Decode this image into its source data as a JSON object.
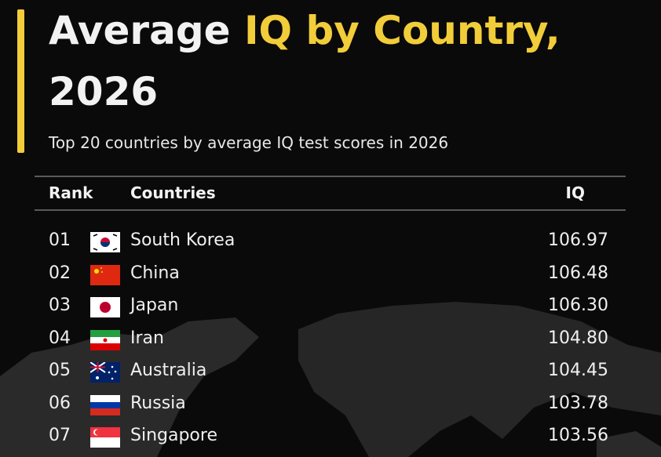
{
  "header": {
    "title": [
      "Average",
      "IQ by Country,",
      "2026"
    ],
    "subtitle": "Top 20 countries by average IQ test scores in 2026"
  },
  "table": {
    "columns": [
      "Rank",
      "Countries",
      "IQ"
    ],
    "rows": [
      [
        "01",
        "South Korea",
        "106.97"
      ],
      [
        "02",
        "China",
        "106.48"
      ],
      [
        "03",
        "Japan",
        "106.30"
      ],
      [
        "04",
        "Iran",
        "104.80"
      ],
      [
        "05",
        "Australia",
        "104.45"
      ],
      [
        "06",
        "Russia",
        "103.78"
      ],
      [
        "07",
        "Singapore",
        "103.56"
      ]
    ]
  }
}
